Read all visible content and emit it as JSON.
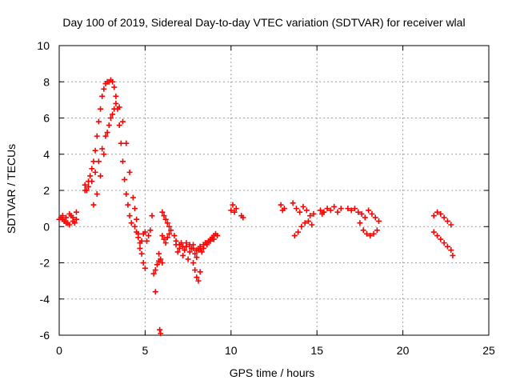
{
  "chart_data": {
    "type": "scatter",
    "title": "Day 100 of 2019, Sidereal Day-to-day VTEC variation (SDTVAR) for receiver wlal",
    "xlabel": "GPS time / hours",
    "ylabel": "SDTVAR / TECUs",
    "xlim": [
      0,
      25
    ],
    "ylim": [
      -6,
      10
    ],
    "xticks": [
      0,
      5,
      10,
      15,
      20,
      25
    ],
    "yticks": [
      -6,
      -4,
      -2,
      0,
      2,
      4,
      6,
      8,
      10
    ],
    "xtick_labels": [
      "0",
      "5",
      "10",
      "15",
      "20",
      "25"
    ],
    "ytick_labels": [
      "-6",
      "-4",
      "-2",
      "0",
      "2",
      "4",
      "6",
      "8",
      "10"
    ],
    "grid": true,
    "marker": "+",
    "color": "#ff0000",
    "series": [
      {
        "name": "SDTVAR",
        "x": [
          0.0,
          0.1,
          0.2,
          0.3,
          0.4,
          0.5,
          0.6,
          0.7,
          0.8,
          0.9,
          1.0,
          0.2,
          0.4,
          0.6,
          0.8,
          1.0,
          1.5,
          1.6,
          1.7,
          1.8,
          1.9,
          2.0,
          2.1,
          2.2,
          2.3,
          2.4,
          2.5,
          2.6,
          2.7,
          2.8,
          2.9,
          3.0,
          3.1,
          3.2,
          3.3,
          3.4,
          3.5,
          3.6,
          3.7,
          3.8,
          3.9,
          4.0,
          4.1,
          4.2,
          1.5,
          1.7,
          1.9,
          2.1,
          2.3,
          2.5,
          2.7,
          2.9,
          3.1,
          3.3,
          3.5,
          3.7,
          3.9,
          4.1,
          2.0,
          2.2,
          2.4,
          2.6,
          2.8,
          3.0,
          3.2,
          4.3,
          4.4,
          4.5,
          4.6,
          4.7,
          4.8,
          4.9,
          5.0,
          4.4,
          4.5,
          4.6,
          4.7,
          4.8,
          4.9,
          5.0,
          5.2,
          5.4,
          5.1,
          5.3,
          5.5,
          5.6,
          5.7,
          5.8,
          5.9,
          6.0,
          6.0,
          6.1,
          6.2,
          6.3,
          6.4,
          6.5,
          6.0,
          6.1,
          6.2,
          6.3,
          6.4,
          5.6,
          5.8,
          5.85,
          5.9,
          6.7,
          6.8,
          6.9,
          7.0,
          7.1,
          7.2,
          7.3,
          7.4,
          7.5,
          7.6,
          7.7,
          7.8,
          7.9,
          8.0,
          8.1,
          8.2,
          8.3,
          8.4,
          8.5,
          8.6,
          8.7,
          8.8,
          8.9,
          9.0,
          9.1,
          9.2,
          6.8,
          7.0,
          7.2,
          7.4,
          7.6,
          7.8,
          8.0,
          8.2,
          8.4,
          8.6,
          8.8,
          9.0,
          7.8,
          7.9,
          8.0,
          8.1,
          8.2,
          10.0,
          10.1,
          10.2,
          10.3,
          10.6,
          10.7,
          12.9,
          13.0,
          13.1,
          13.6,
          13.8,
          14.0,
          14.2,
          14.4,
          14.6,
          14.8,
          13.7,
          13.9,
          14.1,
          14.3,
          14.5,
          14.7,
          15.2,
          15.3,
          15.4,
          15.4,
          15.6,
          15.8,
          16.0,
          16.2,
          16.4,
          16.8,
          17.0,
          17.2,
          17.4,
          17.6,
          17.8,
          18.0,
          18.2,
          18.4,
          18.6,
          17.5,
          17.7,
          17.9,
          18.1,
          18.3,
          18.5,
          21.8,
          22.0,
          22.2,
          22.4,
          22.6,
          22.8,
          21.8,
          22.0,
          22.2,
          22.4,
          22.6,
          22.8,
          22.9
        ],
        "y": [
          0.4,
          0.5,
          0.4,
          0.3,
          0.5,
          0.2,
          0.1,
          0.6,
          0.3,
          0.2,
          0.4,
          0.6,
          0.2,
          0.7,
          0.5,
          0.8,
          2.3,
          2.0,
          2.5,
          2.8,
          3.2,
          3.6,
          4.2,
          5.0,
          5.8,
          6.5,
          7.2,
          7.6,
          7.9,
          8.0,
          8.0,
          8.1,
          8.0,
          7.7,
          7.2,
          6.5,
          5.6,
          4.6,
          3.6,
          2.6,
          1.8,
          1.2,
          0.6,
          0.2,
          2.0,
          2.2,
          2.5,
          3.0,
          3.6,
          4.3,
          5.0,
          5.6,
          6.2,
          6.8,
          6.6,
          5.8,
          4.6,
          3.0,
          1.2,
          1.8,
          2.8,
          4.0,
          5.2,
          6.0,
          6.5,
          1.6,
          1.0,
          0.4,
          -0.4,
          -0.9,
          -1.5,
          -2.0,
          -2.3,
          0.0,
          -0.3,
          -0.6,
          -1.2,
          -0.8,
          -0.4,
          -0.3,
          -0.5,
          0.6,
          -0.8,
          -0.2,
          -2.6,
          -2.4,
          -2.1,
          -1.9,
          -1.8,
          -2.0,
          0.8,
          0.6,
          0.4,
          0.2,
          0.0,
          -0.2,
          -0.5,
          -0.7,
          -0.9,
          -0.6,
          -0.4,
          -3.6,
          -1.5,
          -5.7,
          -5.9,
          -0.5,
          -1.0,
          -1.4,
          -1.2,
          -0.9,
          -1.6,
          -1.3,
          -1.1,
          -1.8,
          -1.4,
          -1.2,
          -1.0,
          -1.5,
          -1.7,
          -1.3,
          -1.1,
          -1.4,
          -1.2,
          -0.9,
          -1.0,
          -0.8,
          -0.7,
          -0.6,
          -0.5,
          -0.4,
          -0.5,
          -0.8,
          -1.0,
          -1.1,
          -0.9,
          -1.0,
          -1.2,
          -1.3,
          -1.2,
          -1.0,
          -0.9,
          -0.8,
          -0.7,
          -2.0,
          -2.4,
          -2.8,
          -3.0,
          -2.5,
          0.9,
          1.2,
          0.8,
          1.0,
          0.6,
          0.5,
          1.2,
          0.9,
          1.0,
          1.3,
          1.0,
          0.8,
          1.1,
          0.9,
          0.6,
          0.7,
          -0.5,
          -0.3,
          0.0,
          0.2,
          0.3,
          0.1,
          0.9,
          0.7,
          0.8,
          0.8,
          1.0,
          0.9,
          1.1,
          0.8,
          1.0,
          1.0,
          0.9,
          1.0,
          0.8,
          0.7,
          0.5,
          0.9,
          0.7,
          0.5,
          0.3,
          0.2,
          -0.2,
          -0.4,
          -0.5,
          -0.4,
          -0.2,
          0.6,
          0.8,
          0.7,
          0.5,
          0.3,
          0.1,
          -0.3,
          -0.5,
          -0.7,
          -0.9,
          -1.1,
          -1.3,
          -1.6
        ]
      }
    ]
  }
}
